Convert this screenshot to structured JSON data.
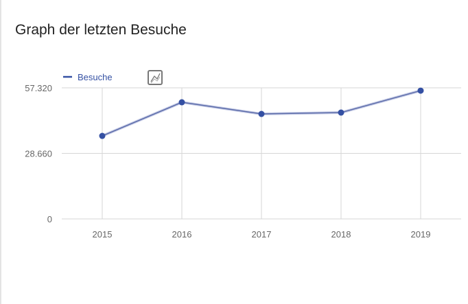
{
  "widget": {
    "title": "Graph der letzten Besuche"
  },
  "chart_data": {
    "type": "line",
    "title": "Graph der letzten Besuche",
    "categories": [
      "2015",
      "2016",
      "2017",
      "2018",
      "2019"
    ],
    "series": [
      {
        "name": "Besuche",
        "values": [
          36300,
          51000,
          45900,
          46500,
          56100
        ],
        "color": "#3450a3"
      }
    ],
    "yticks": [
      0,
      28660,
      57320
    ],
    "ytick_labels": [
      "0",
      "28.660",
      "57.320"
    ],
    "ylim": [
      0,
      57320
    ],
    "grid": true,
    "legend": "top-left",
    "legend_icon": "chart-type-switch-icon"
  }
}
